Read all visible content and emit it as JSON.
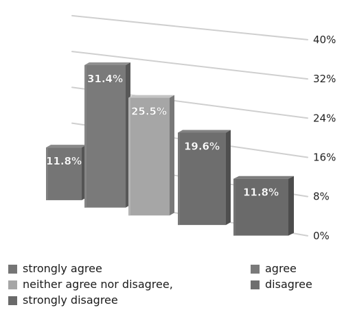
{
  "chart_data": {
    "type": "bar",
    "categories": [
      "strongly agree",
      "agree",
      "neither agree nor disagree,",
      "disagree",
      "strongly disagree"
    ],
    "values": [
      11.8,
      31.4,
      25.5,
      19.6,
      11.8
    ],
    "data_labels": [
      "11.8%",
      "31.4%",
      "25.5%",
      "19.6%",
      "11.8%"
    ],
    "title": "",
    "xlabel": "",
    "ylabel": "",
    "ylim": [
      0,
      40
    ],
    "y_ticks": [
      "0%",
      "8%",
      "16%",
      "24%",
      "32%",
      "40%"
    ],
    "grid": true,
    "style": "3d",
    "legend_position": "bottom",
    "colors": [
      "#757575",
      "#7a7a7a",
      "#a6a6a6",
      "#6e6e6e",
      "#6a6a6a"
    ]
  },
  "legend": {
    "strongly_agree": "strongly agree",
    "neither": "neither agree nor disagree,",
    "strongly_disagree": "strongly disagree",
    "agree": "agree",
    "disagree": "disagree"
  }
}
